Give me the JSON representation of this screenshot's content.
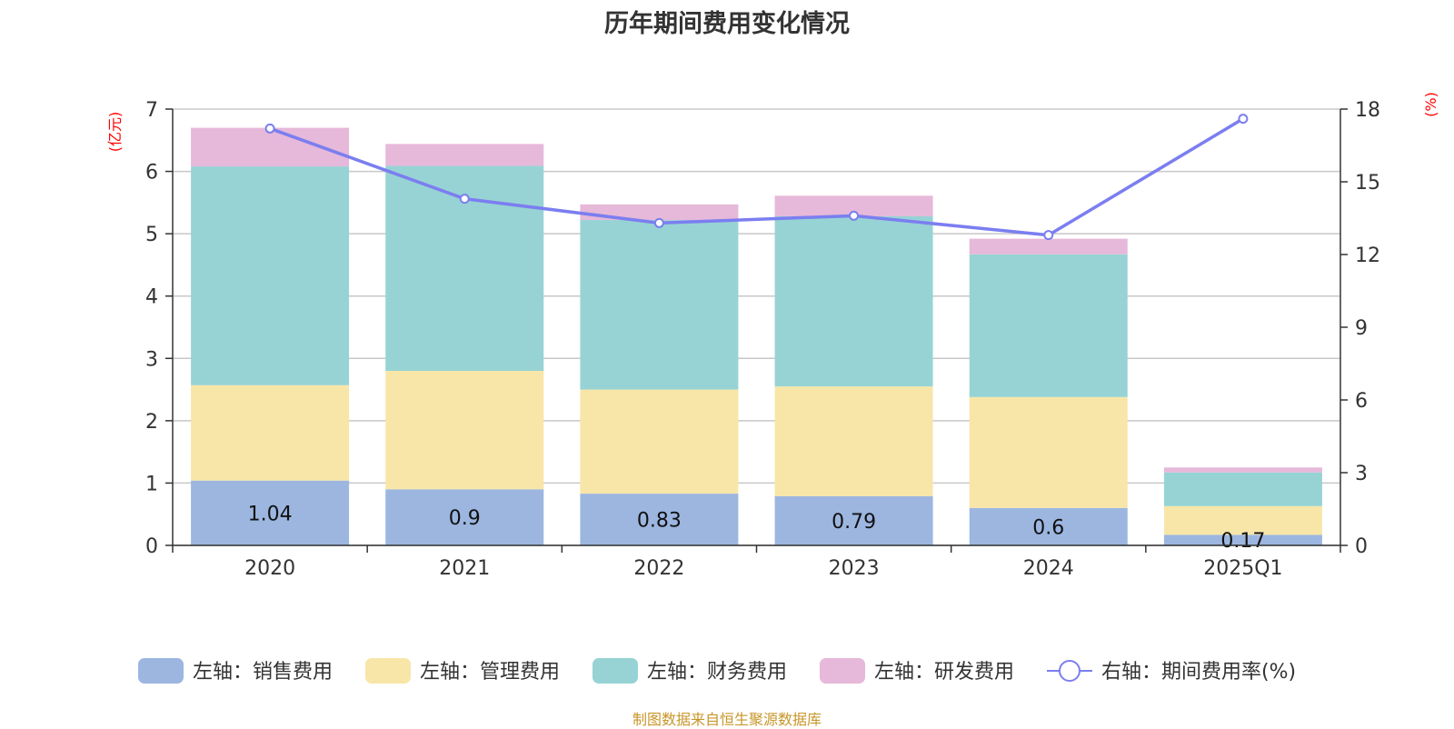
{
  "chart_data": {
    "type": "bar",
    "stacked": true,
    "title": "历年期间费用变化情况",
    "categories": [
      "2020",
      "2021",
      "2022",
      "2023",
      "2024",
      "2025Q1"
    ],
    "series": [
      {
        "name": "左轴：销售费用",
        "axis": "left",
        "type": "bar",
        "color": "#9cb6e0",
        "values": [
          1.04,
          0.9,
          0.83,
          0.79,
          0.6,
          0.17
        ],
        "labels": [
          "1.04",
          "0.9",
          "0.83",
          "0.79",
          "0.6",
          "0.17"
        ]
      },
      {
        "name": "左轴：管理费用",
        "axis": "left",
        "type": "bar",
        "color": "#f8e6a8",
        "values": [
          1.53,
          1.9,
          1.67,
          1.76,
          1.78,
          0.46
        ]
      },
      {
        "name": "左轴：财务费用",
        "axis": "left",
        "type": "bar",
        "color": "#97d3d4",
        "values": [
          3.51,
          3.29,
          2.72,
          2.73,
          2.29,
          0.54
        ]
      },
      {
        "name": "左轴：研发费用",
        "axis": "left",
        "type": "bar",
        "color": "#e6b8d9",
        "values": [
          0.62,
          0.35,
          0.25,
          0.33,
          0.25,
          0.08
        ]
      },
      {
        "name": "右轴：期间费用率(%)",
        "axis": "right",
        "type": "line",
        "color": "#7b7ef0",
        "values": [
          17.2,
          14.3,
          13.3,
          13.6,
          12.8,
          17.6
        ]
      }
    ],
    "left_axis": {
      "unit": "(亿元)",
      "ylim": [
        0,
        7
      ],
      "ticks": [
        "0",
        "1",
        "2",
        "3",
        "4",
        "5",
        "6",
        "7"
      ],
      "unit_color": "#ff0000"
    },
    "right_axis": {
      "unit": "(%)",
      "ylim": [
        0,
        18
      ],
      "ticks": [
        "0",
        "3",
        "6",
        "9",
        "12",
        "15",
        "18"
      ],
      "unit_color": "#ff0000"
    },
    "grid": true,
    "legend_position": "bottom"
  },
  "source_note": "制图数据来自恒生聚源数据库"
}
